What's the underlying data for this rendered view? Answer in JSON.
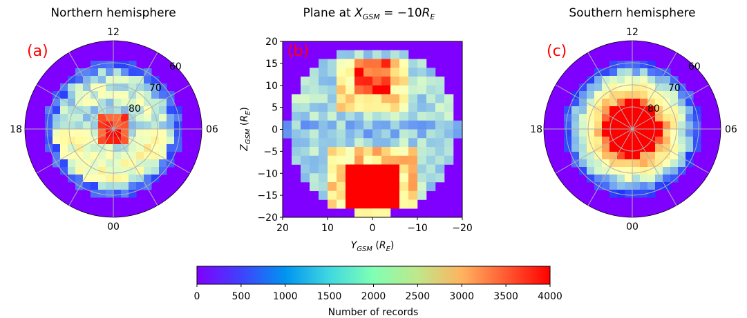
{
  "chart_data": [
    {
      "type": "heatmap",
      "projection": "polar",
      "panel": "(a)",
      "title": "Northern hemisphere",
      "mlt_labels": [
        "12",
        "06",
        "00",
        "18"
      ],
      "lat_labels": [
        "60",
        "70",
        "80"
      ],
      "grid": true,
      "description_values": "counts high (~4000) near pole, ~2000-2500 at 70-80 deg on dusk/night side, ~0 below ~60 deg"
    },
    {
      "type": "heatmap",
      "panel": "(b)",
      "title_parts": [
        "Plane at ",
        "X",
        "GSM",
        " = −10",
        "R",
        "E"
      ],
      "xlabel_parts": [
        "Y",
        "GSM",
        " (",
        "R",
        "E",
        ")"
      ],
      "ylabel_parts": [
        "Z",
        "GSM",
        " (",
        "R",
        "E",
        ")"
      ],
      "xlim": [
        20,
        -20
      ],
      "ylim": [
        -20,
        20
      ],
      "xticks": [
        "20",
        "10",
        "0",
        "−10",
        "−20"
      ],
      "yticks": [
        "20",
        "15",
        "10",
        "5",
        "0",
        "−5",
        "−10",
        "−15",
        "−20"
      ],
      "description_values": "two lobes: Z 8-17 near Y 0-4 up to 4000, Z -8 to -17 broad saturated region |Y|<6"
    },
    {
      "type": "heatmap",
      "projection": "polar",
      "panel": "(c)",
      "title": "Southern hemisphere",
      "mlt_labels": [
        "12",
        "06",
        "00",
        "18"
      ],
      "lat_labels": [
        "60",
        "70",
        "80"
      ],
      "grid": true,
      "description_values": "saturated core (~4000) poleward of ~78 deg, falling to ~1500 at 70 deg, ~0 below 60 deg"
    }
  ],
  "colorbar": {
    "label": "Number of records",
    "vmin": 0,
    "vmax": 4000,
    "ticks": [
      "0",
      "500",
      "1000",
      "1500",
      "2000",
      "2500",
      "3000",
      "3500",
      "4000"
    ],
    "colormap": "rainbow"
  },
  "colors": {
    "panel_label": "#ff0000",
    "grid": "#b0b0b0",
    "background_value": "#8000ff"
  }
}
